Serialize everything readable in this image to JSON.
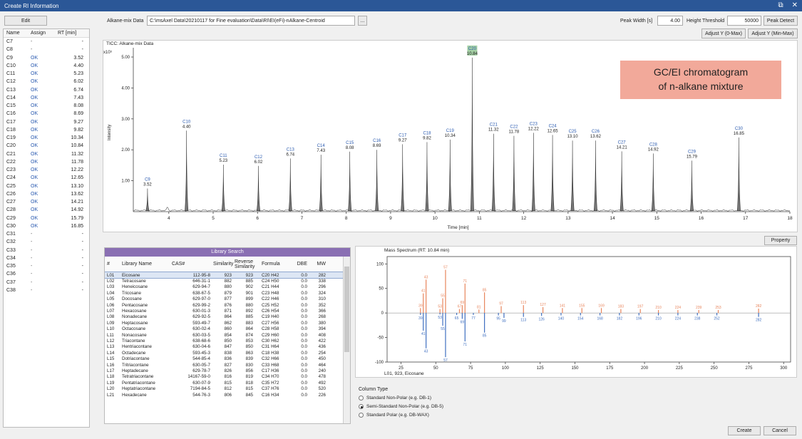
{
  "window": {
    "title": "Create RI Information"
  },
  "toolbar": {
    "edit_label": "Edit",
    "alkane_label": "Alkane-mix Data",
    "alkane_path": "C:\\msAxel Data\\20210117 for Fine evaluation\\Data\\RI\\EI(eFi)-nAlkane-Centroid",
    "browse_label": "...",
    "peak_width_label": "Peak Width [s]",
    "peak_width_value": "4.00",
    "height_threshold_label": "Height Threshold",
    "height_threshold_value": "50000",
    "peak_detect_label": "Peak Detect",
    "adjust_y0_label": "Adjust Y (0-Max)",
    "adjust_ymin_label": "Adjust Y (Min-Max)"
  },
  "rt_table": {
    "headers": {
      "name": "Name",
      "assign": "Assign",
      "rt": "RT [min]"
    },
    "rows": [
      {
        "name": "C7",
        "assign": "-",
        "rt": "-"
      },
      {
        "name": "C8",
        "assign": "-",
        "rt": "-"
      },
      {
        "name": "C9",
        "assign": "OK",
        "rt": "3.52"
      },
      {
        "name": "C10",
        "assign": "OK",
        "rt": "4.40"
      },
      {
        "name": "C11",
        "assign": "OK",
        "rt": "5.23"
      },
      {
        "name": "C12",
        "assign": "OK",
        "rt": "6.02"
      },
      {
        "name": "C13",
        "assign": "OK",
        "rt": "6.74"
      },
      {
        "name": "C14",
        "assign": "OK",
        "rt": "7.43"
      },
      {
        "name": "C15",
        "assign": "OK",
        "rt": "8.08"
      },
      {
        "name": "C16",
        "assign": "OK",
        "rt": "8.69"
      },
      {
        "name": "C17",
        "assign": "OK",
        "rt": "9.27"
      },
      {
        "name": "C18",
        "assign": "OK",
        "rt": "9.82"
      },
      {
        "name": "C19",
        "assign": "OK",
        "rt": "10.34"
      },
      {
        "name": "C20",
        "assign": "OK",
        "rt": "10.84"
      },
      {
        "name": "C21",
        "assign": "OK",
        "rt": "11.32"
      },
      {
        "name": "C22",
        "assign": "OK",
        "rt": "11.78"
      },
      {
        "name": "C23",
        "assign": "OK",
        "rt": "12.22"
      },
      {
        "name": "C24",
        "assign": "OK",
        "rt": "12.65"
      },
      {
        "name": "C25",
        "assign": "OK",
        "rt": "13.10"
      },
      {
        "name": "C26",
        "assign": "OK",
        "rt": "13.62"
      },
      {
        "name": "C27",
        "assign": "OK",
        "rt": "14.21"
      },
      {
        "name": "C28",
        "assign": "OK",
        "rt": "14.92"
      },
      {
        "name": "C29",
        "assign": "OK",
        "rt": "15.79"
      },
      {
        "name": "C30",
        "assign": "OK",
        "rt": "16.85"
      },
      {
        "name": "C31",
        "assign": "-",
        "rt": "-"
      },
      {
        "name": "C32",
        "assign": "-",
        "rt": "-"
      },
      {
        "name": "C33",
        "assign": "-",
        "rt": "-"
      },
      {
        "name": "C34",
        "assign": "-",
        "rt": "-"
      },
      {
        "name": "C35",
        "assign": "-",
        "rt": "-"
      },
      {
        "name": "C36",
        "assign": "-",
        "rt": "-"
      },
      {
        "name": "C37",
        "assign": "-",
        "rt": "-"
      },
      {
        "name": "C38",
        "assign": "-",
        "rt": "-"
      }
    ]
  },
  "callout": {
    "line1": "GC/EI chromatogram",
    "line2": "of n-alkane mixture"
  },
  "chart_data": [
    {
      "type": "line",
      "title": "TICC: Alkane-mix Data",
      "xlabel": "Time [min]",
      "ylabel": "Intensity",
      "y_multiplier": "x10⁵",
      "xlim": [
        3.2,
        18
      ],
      "ylim": [
        0,
        5.3
      ],
      "x_ticks": [
        4,
        5,
        6,
        7,
        8,
        9,
        10,
        11,
        12,
        13,
        14,
        15,
        16,
        17,
        18
      ],
      "y_ticks": [
        "1.00",
        "2.00",
        "3.00",
        "4.00",
        "5.00"
      ],
      "y_tick_values": [
        1,
        2,
        3,
        4,
        5
      ],
      "peaks": [
        {
          "name": "C9",
          "rt": "3.52",
          "x": 3.52,
          "y": 0.75
        },
        {
          "name": "C10",
          "rt": "4.40",
          "x": 4.4,
          "y": 2.62
        },
        {
          "name": "C11",
          "rt": "5.23",
          "x": 5.23,
          "y": 1.52
        },
        {
          "name": "C12",
          "rt": "6.02",
          "x": 6.02,
          "y": 1.48
        },
        {
          "name": "C13",
          "rt": "6.74",
          "x": 6.74,
          "y": 1.72
        },
        {
          "name": "C14",
          "rt": "7.43",
          "x": 7.43,
          "y": 1.84
        },
        {
          "name": "C15",
          "rt": "8.08",
          "x": 8.08,
          "y": 1.94
        },
        {
          "name": "C16",
          "rt": "8.69",
          "x": 8.69,
          "y": 2.0
        },
        {
          "name": "C17",
          "rt": "9.27",
          "x": 9.27,
          "y": 2.18
        },
        {
          "name": "C18",
          "rt": "9.82",
          "x": 9.82,
          "y": 2.25
        },
        {
          "name": "C19",
          "rt": "10.34",
          "x": 10.34,
          "y": 2.33
        },
        {
          "name": "C20",
          "rt": "10.84",
          "x": 10.84,
          "y": 4.98
        },
        {
          "name": "C21",
          "rt": "11.32",
          "x": 11.32,
          "y": 2.52
        },
        {
          "name": "C22",
          "rt": "11.78",
          "x": 11.78,
          "y": 2.45
        },
        {
          "name": "C23",
          "rt": "12.22",
          "x": 12.22,
          "y": 2.55
        },
        {
          "name": "C24",
          "rt": "12.65",
          "x": 12.65,
          "y": 2.48
        },
        {
          "name": "C25",
          "rt": "13.10",
          "x": 13.1,
          "y": 2.3
        },
        {
          "name": "C26",
          "rt": "13.62",
          "x": 13.62,
          "y": 2.3
        },
        {
          "name": "C27",
          "rt": "14.21",
          "x": 14.21,
          "y": 1.95
        },
        {
          "name": "C28",
          "rt": "14.92",
          "x": 14.92,
          "y": 1.88
        },
        {
          "name": "C29",
          "rt": "15.79",
          "x": 15.79,
          "y": 1.65
        },
        {
          "name": "C30",
          "rt": "16.85",
          "x": 16.85,
          "y": 2.4
        }
      ]
    },
    {
      "type": "bar",
      "title": "Mass Spectrum (RT: 10.84 min)",
      "caption": "L01, 923, Eicosane",
      "xlim": [
        15,
        305
      ],
      "ylim": [
        -100,
        115
      ],
      "x_ticks": [
        25,
        50,
        75,
        100,
        125,
        150,
        175,
        200,
        225,
        250,
        275,
        300
      ],
      "y_ticks": [
        100,
        50,
        0,
        -50,
        -100
      ],
      "measured": [
        {
          "mz": 39,
          "i": 10,
          "label": "39"
        },
        {
          "mz": 41,
          "i": 40,
          "label": "41"
        },
        {
          "mz": 43,
          "i": 68,
          "label": "43"
        },
        {
          "mz": 53,
          "i": 8,
          "label": "53"
        },
        {
          "mz": 55,
          "i": 30,
          "label": "55"
        },
        {
          "mz": 57,
          "i": 88,
          "label": "57"
        },
        {
          "mz": 67,
          "i": 8,
          "label": "67"
        },
        {
          "mz": 69,
          "i": 16,
          "label": "69"
        },
        {
          "mz": 71,
          "i": 60,
          "label": "71"
        },
        {
          "mz": 81,
          "i": 7,
          "label": "81"
        },
        {
          "mz": 85,
          "i": 42,
          "label": "85"
        },
        {
          "mz": 97,
          "i": 14,
          "label": "97"
        },
        {
          "mz": 113,
          "i": 16,
          "label": "113"
        },
        {
          "mz": 127,
          "i": 12,
          "label": "127"
        },
        {
          "mz": 141,
          "i": 10,
          "label": "141"
        },
        {
          "mz": 155,
          "i": 10,
          "label": "155"
        },
        {
          "mz": 169,
          "i": 10,
          "label": "169"
        },
        {
          "mz": 183,
          "i": 8,
          "label": "183"
        },
        {
          "mz": 197,
          "i": 8,
          "label": "197"
        },
        {
          "mz": 210,
          "i": 6,
          "label": "210"
        },
        {
          "mz": 224,
          "i": 6,
          "label": "224"
        },
        {
          "mz": 239,
          "i": 6,
          "label": "239"
        },
        {
          "mz": 253,
          "i": 6,
          "label": "253"
        },
        {
          "mz": 282,
          "i": 9,
          "label": "282"
        }
      ],
      "library": [
        {
          "mz": 39,
          "i": 4,
          "label": "39"
        },
        {
          "mz": 41,
          "i": 36,
          "label": "41"
        },
        {
          "mz": 43,
          "i": 72,
          "label": "43"
        },
        {
          "mz": 53,
          "i": 3,
          "label": "53"
        },
        {
          "mz": 55,
          "i": 26,
          "label": "55"
        },
        {
          "mz": 57,
          "i": 90,
          "label": "57"
        },
        {
          "mz": 65,
          "i": 4,
          "label": "65"
        },
        {
          "mz": 69,
          "i": 12,
          "label": "69"
        },
        {
          "mz": 71,
          "i": 58,
          "label": "71"
        },
        {
          "mz": 77,
          "i": 4,
          "label": "77"
        },
        {
          "mz": 85,
          "i": 40,
          "label": "85"
        },
        {
          "mz": 95,
          "i": 5,
          "label": "95"
        },
        {
          "mz": 99,
          "i": 10,
          "label": "99"
        },
        {
          "mz": 113,
          "i": 8,
          "label": "113"
        },
        {
          "mz": 126,
          "i": 6,
          "label": "126"
        },
        {
          "mz": 140,
          "i": 5,
          "label": "140"
        },
        {
          "mz": 154,
          "i": 5,
          "label": "154"
        },
        {
          "mz": 168,
          "i": 5,
          "label": "168"
        },
        {
          "mz": 182,
          "i": 5,
          "label": "182"
        },
        {
          "mz": 196,
          "i": 5,
          "label": "196"
        },
        {
          "mz": 210,
          "i": 5,
          "label": "210"
        },
        {
          "mz": 224,
          "i": 5,
          "label": "224"
        },
        {
          "mz": 238,
          "i": 5,
          "label": "238"
        },
        {
          "mz": 252,
          "i": 5,
          "label": "252"
        },
        {
          "mz": 282,
          "i": 8,
          "label": "282"
        }
      ]
    }
  ],
  "library": {
    "title": "Library Search",
    "headers": {
      "num": "#",
      "name": "Library Name",
      "cas": "CAS#",
      "sim": "Similarity",
      "rsim": "Reverse Similarity",
      "formula": "Formula",
      "dbe": "DBE",
      "mw": "MW"
    },
    "rows": [
      {
        "id": "L01",
        "name": "Eicosane",
        "cas": "112-95-8",
        "sim": "923",
        "rsim": "923",
        "formula": "C20 H42",
        "dbe": "0.0",
        "mw": "282"
      },
      {
        "id": "L02",
        "name": "Tetracosane",
        "cas": "646-31-1",
        "sim": "882",
        "rsim": "885",
        "formula": "C24 H50",
        "dbe": "0.0",
        "mw": "338"
      },
      {
        "id": "L03",
        "name": "Heneicosane",
        "cas": "629-94-7",
        "sim": "880",
        "rsim": "902",
        "formula": "C21 H44",
        "dbe": "0.0",
        "mw": "296"
      },
      {
        "id": "L04",
        "name": "Tricosane",
        "cas": "638-67-5",
        "sim": "879",
        "rsim": "901",
        "formula": "C23 H48",
        "dbe": "0.0",
        "mw": "324"
      },
      {
        "id": "L05",
        "name": "Docosane",
        "cas": "629-97-0",
        "sim": "877",
        "rsim": "899",
        "formula": "C22 H46",
        "dbe": "0.0",
        "mw": "310"
      },
      {
        "id": "L06",
        "name": "Pentacosane",
        "cas": "629-99-2",
        "sim": "876",
        "rsim": "880",
        "formula": "C25 H52",
        "dbe": "0.0",
        "mw": "352"
      },
      {
        "id": "L07",
        "name": "Hexacosane",
        "cas": "630-01-3",
        "sim": "871",
        "rsim": "892",
        "formula": "C26 H54",
        "dbe": "0.0",
        "mw": "366"
      },
      {
        "id": "L08",
        "name": "Nonadecane",
        "cas": "629-92-5",
        "sim": "864",
        "rsim": "885",
        "formula": "C19 H40",
        "dbe": "0.0",
        "mw": "268"
      },
      {
        "id": "L09",
        "name": "Heptacosane",
        "cas": "593-49-7",
        "sim": "862",
        "rsim": "883",
        "formula": "C27 H56",
        "dbe": "0.0",
        "mw": "380"
      },
      {
        "id": "L10",
        "name": "Octacosane",
        "cas": "630-02-4",
        "sim": "860",
        "rsim": "864",
        "formula": "C28 H58",
        "dbe": "0.0",
        "mw": "394"
      },
      {
        "id": "L11",
        "name": "Nonacosane",
        "cas": "630-03-5",
        "sim": "854",
        "rsim": "874",
        "formula": "C29 H60",
        "dbe": "0.0",
        "mw": "408"
      },
      {
        "id": "L12",
        "name": "Triacontane",
        "cas": "638-68-6",
        "sim": "850",
        "rsim": "853",
        "formula": "C30 H62",
        "dbe": "0.0",
        "mw": "422"
      },
      {
        "id": "L13",
        "name": "Hentriacontane",
        "cas": "630-04-6",
        "sim": "847",
        "rsim": "850",
        "formula": "C31 H64",
        "dbe": "0.0",
        "mw": "436"
      },
      {
        "id": "L14",
        "name": "Octadecane",
        "cas": "593-45-3",
        "sim": "838",
        "rsim": "863",
        "formula": "C18 H38",
        "dbe": "0.0",
        "mw": "254"
      },
      {
        "id": "L15",
        "name": "Dotriacontane",
        "cas": "544-85-4",
        "sim": "836",
        "rsim": "839",
        "formula": "C32 H66",
        "dbe": "0.0",
        "mw": "450"
      },
      {
        "id": "L16",
        "name": "Tritriacontane",
        "cas": "630-05-7",
        "sim": "827",
        "rsim": "830",
        "formula": "C33 H68",
        "dbe": "0.0",
        "mw": "464"
      },
      {
        "id": "L17",
        "name": "Heptadecane",
        "cas": "629-78-7",
        "sim": "826",
        "rsim": "856",
        "formula": "C17 H36",
        "dbe": "0.0",
        "mw": "240"
      },
      {
        "id": "L18",
        "name": "Tetratriacontane",
        "cas": "14167-59-0",
        "sim": "816",
        "rsim": "819",
        "formula": "C34 H70",
        "dbe": "0.0",
        "mw": "478"
      },
      {
        "id": "L19",
        "name": "Pentatriacontane",
        "cas": "630-07-9",
        "sim": "815",
        "rsim": "818",
        "formula": "C35 H72",
        "dbe": "0.0",
        "mw": "492"
      },
      {
        "id": "L20",
        "name": "Heptatriacontane",
        "cas": "7194-84-5",
        "sim": "812",
        "rsim": "815",
        "formula": "C37 H76",
        "dbe": "0.0",
        "mw": "520"
      },
      {
        "id": "L21",
        "name": "Hexadecane",
        "cas": "544-76-3",
        "sim": "806",
        "rsim": "845",
        "formula": "C16 H34",
        "dbe": "0.0",
        "mw": "226"
      }
    ]
  },
  "property_label": "Property",
  "column_type": {
    "title": "Column Type",
    "options": [
      {
        "label": "Standard Non-Polar (e.g. DB-1)",
        "selected": false
      },
      {
        "label": "Semi-Standard Non-Polar (e.g. DB-5)",
        "selected": true
      },
      {
        "label": "Standard Polar (e.g. DB-WAX)",
        "selected": false
      }
    ]
  },
  "footer": {
    "create_label": "Create",
    "cancel_label": "Cancel"
  },
  "colors": {
    "measured": "#e8855c",
    "library": "#3f6fc0",
    "peak_label": "#2a5ab0",
    "c20_highlight": "#5aaa5a"
  }
}
